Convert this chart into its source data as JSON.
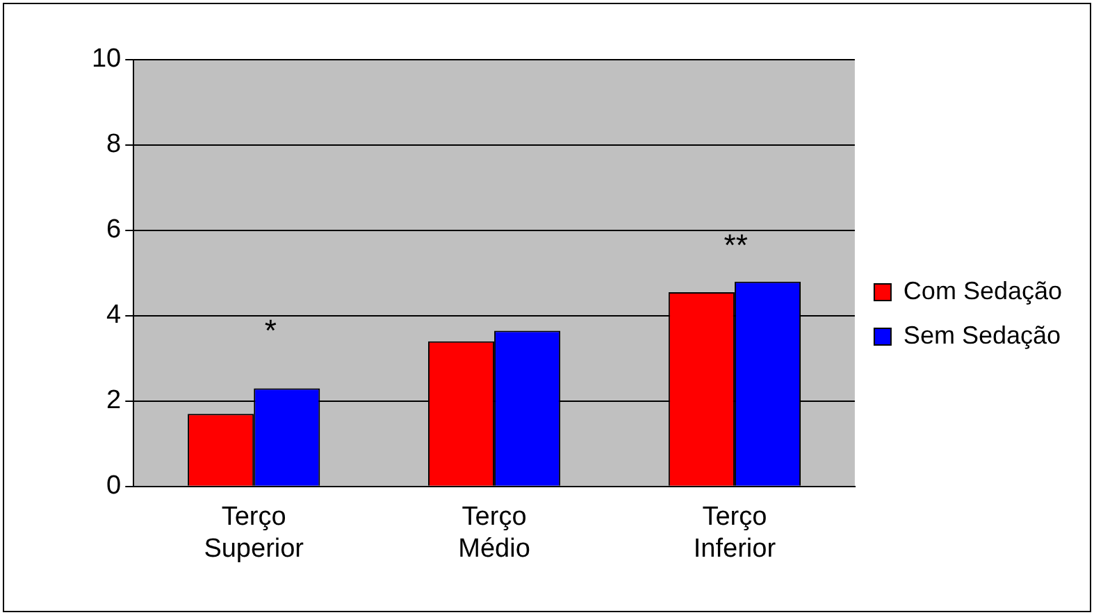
{
  "chart_data": {
    "type": "bar",
    "categories": [
      "Terço Superior",
      "Terço Médio",
      "Terço Inferior"
    ],
    "series": [
      {
        "name": "Com Sedação",
        "color": "#ff0000",
        "values": [
          1.7,
          3.4,
          4.55
        ]
      },
      {
        "name": "Sem Sedação",
        "color": "#0000ff",
        "values": [
          2.3,
          3.65,
          4.8
        ]
      }
    ],
    "ylim": [
      0,
      10
    ],
    "yticks": [
      0,
      2,
      4,
      6,
      8,
      10
    ],
    "grid": "y",
    "legend": "right",
    "annotations": [
      "*",
      "**"
    ]
  }
}
